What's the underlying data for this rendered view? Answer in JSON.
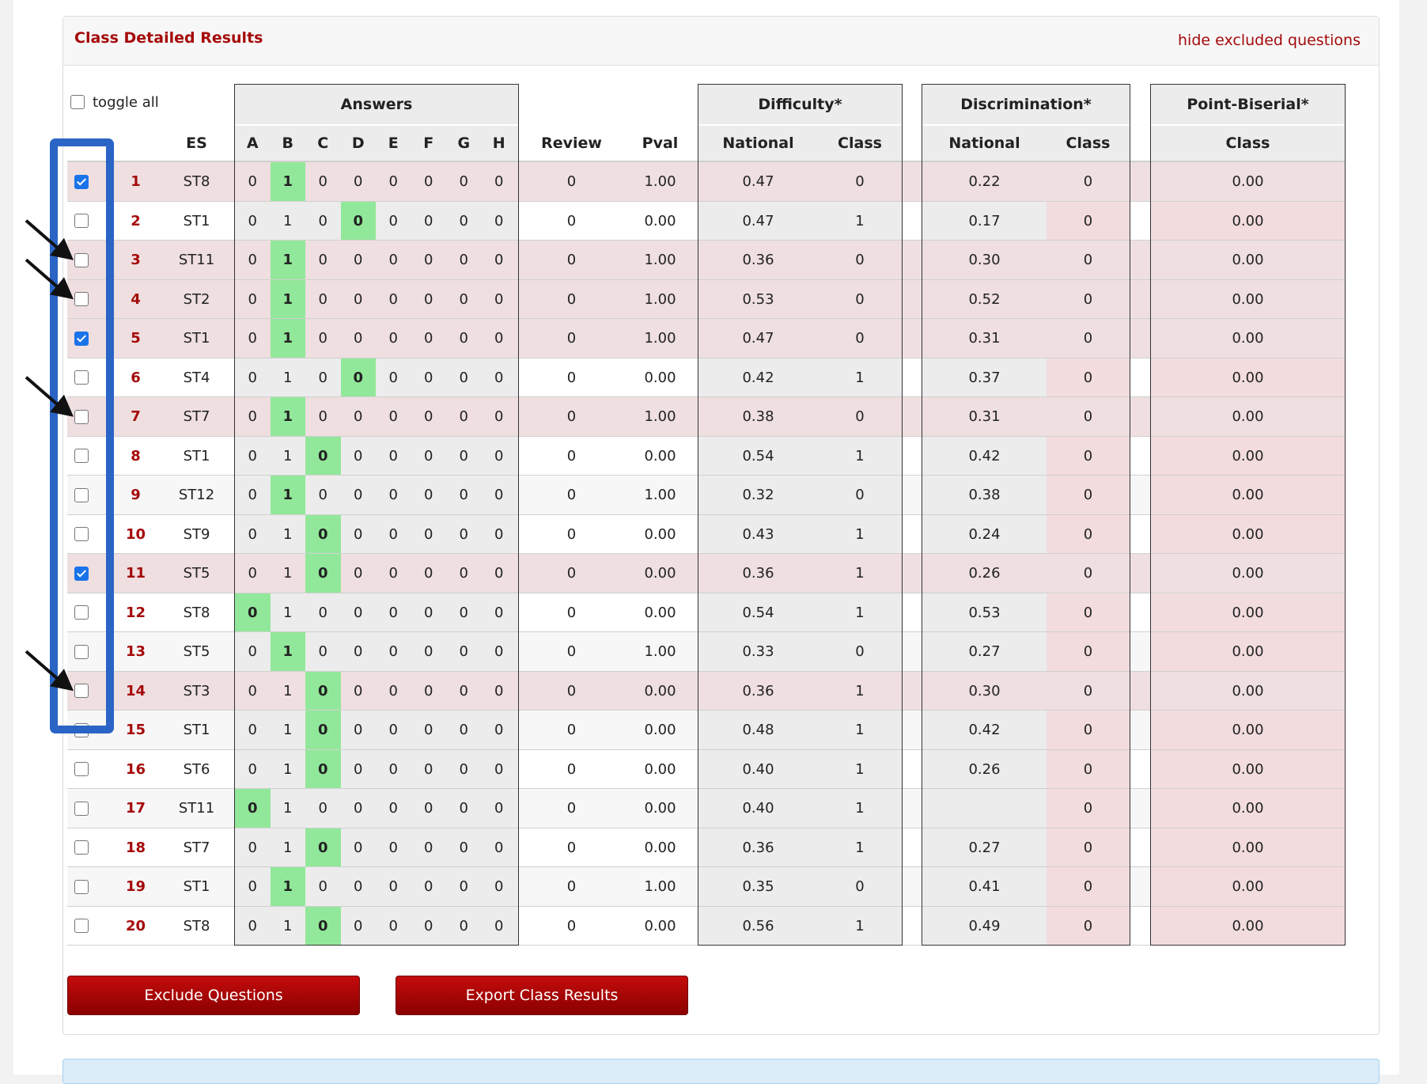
{
  "panel": {
    "title": "Class Detailed Results",
    "hide_link": "hide excluded questions",
    "toggle_all": "toggle all"
  },
  "headers": {
    "answers_group": "Answers",
    "difficulty_group": "Difficulty*",
    "discrimination_group": "Discrimination*",
    "pointbiserial_group": "Point-Biserial*",
    "es": "ES",
    "choices": [
      "A",
      "B",
      "C",
      "D",
      "E",
      "F",
      "G",
      "H"
    ],
    "review": "Review",
    "pval": "Pval",
    "diff_national": "National",
    "diff_class": "Class",
    "disc_national": "National",
    "disc_class": "Class",
    "pb_class": "Class"
  },
  "rows": [
    {
      "q": "1",
      "es": "ST8",
      "answers": [
        "0",
        "1",
        "0",
        "0",
        "0",
        "0",
        "0",
        "0"
      ],
      "correct": 1,
      "review": "0",
      "pval": "1.00",
      "diff_national": "0.47",
      "diff_class": "0",
      "disc_national": "0.22",
      "disc_class": "0",
      "pb_class": "0.00",
      "checked": true,
      "excluded": true
    },
    {
      "q": "2",
      "es": "ST1",
      "answers": [
        "0",
        "1",
        "0",
        "0",
        "0",
        "0",
        "0",
        "0"
      ],
      "correct": 3,
      "review": "0",
      "pval": "0.00",
      "diff_national": "0.47",
      "diff_class": "1",
      "disc_national": "0.17",
      "disc_class": "0",
      "pb_class": "0.00",
      "checked": false,
      "excluded": false
    },
    {
      "q": "3",
      "es": "ST11",
      "answers": [
        "0",
        "1",
        "0",
        "0",
        "0",
        "0",
        "0",
        "0"
      ],
      "correct": 1,
      "review": "0",
      "pval": "1.00",
      "diff_national": "0.36",
      "diff_class": "0",
      "disc_national": "0.30",
      "disc_class": "0",
      "pb_class": "0.00",
      "checked": false,
      "excluded": true
    },
    {
      "q": "4",
      "es": "ST2",
      "answers": [
        "0",
        "1",
        "0",
        "0",
        "0",
        "0",
        "0",
        "0"
      ],
      "correct": 1,
      "review": "0",
      "pval": "1.00",
      "diff_national": "0.53",
      "diff_class": "0",
      "disc_national": "0.52",
      "disc_class": "0",
      "pb_class": "0.00",
      "checked": false,
      "excluded": true
    },
    {
      "q": "5",
      "es": "ST1",
      "answers": [
        "0",
        "1",
        "0",
        "0",
        "0",
        "0",
        "0",
        "0"
      ],
      "correct": 1,
      "review": "0",
      "pval": "1.00",
      "diff_national": "0.47",
      "diff_class": "0",
      "disc_national": "0.31",
      "disc_class": "0",
      "pb_class": "0.00",
      "checked": true,
      "excluded": true
    },
    {
      "q": "6",
      "es": "ST4",
      "answers": [
        "0",
        "1",
        "0",
        "0",
        "0",
        "0",
        "0",
        "0"
      ],
      "correct": 3,
      "review": "0",
      "pval": "0.00",
      "diff_national": "0.42",
      "diff_class": "1",
      "disc_national": "0.37",
      "disc_class": "0",
      "pb_class": "0.00",
      "checked": false,
      "excluded": false
    },
    {
      "q": "7",
      "es": "ST7",
      "answers": [
        "0",
        "1",
        "0",
        "0",
        "0",
        "0",
        "0",
        "0"
      ],
      "correct": 1,
      "review": "0",
      "pval": "1.00",
      "diff_national": "0.38",
      "diff_class": "0",
      "disc_national": "0.31",
      "disc_class": "0",
      "pb_class": "0.00",
      "checked": false,
      "excluded": true
    },
    {
      "q": "8",
      "es": "ST1",
      "answers": [
        "0",
        "1",
        "0",
        "0",
        "0",
        "0",
        "0",
        "0"
      ],
      "correct": 2,
      "review": "0",
      "pval": "0.00",
      "diff_national": "0.54",
      "diff_class": "1",
      "disc_national": "0.42",
      "disc_class": "0",
      "pb_class": "0.00",
      "checked": false,
      "excluded": false
    },
    {
      "q": "9",
      "es": "ST12",
      "answers": [
        "0",
        "1",
        "0",
        "0",
        "0",
        "0",
        "0",
        "0"
      ],
      "correct": 1,
      "review": "0",
      "pval": "1.00",
      "diff_national": "0.32",
      "diff_class": "0",
      "disc_national": "0.38",
      "disc_class": "0",
      "pb_class": "0.00",
      "checked": false,
      "excluded": false
    },
    {
      "q": "10",
      "es": "ST9",
      "answers": [
        "0",
        "1",
        "0",
        "0",
        "0",
        "0",
        "0",
        "0"
      ],
      "correct": 2,
      "review": "0",
      "pval": "0.00",
      "diff_national": "0.43",
      "diff_class": "1",
      "disc_national": "0.24",
      "disc_class": "0",
      "pb_class": "0.00",
      "checked": false,
      "excluded": false
    },
    {
      "q": "11",
      "es": "ST5",
      "answers": [
        "0",
        "1",
        "0",
        "0",
        "0",
        "0",
        "0",
        "0"
      ],
      "correct": 2,
      "review": "0",
      "pval": "0.00",
      "diff_national": "0.36",
      "diff_class": "1",
      "disc_national": "0.26",
      "disc_class": "0",
      "pb_class": "0.00",
      "checked": true,
      "excluded": true
    },
    {
      "q": "12",
      "es": "ST8",
      "answers": [
        "0",
        "1",
        "0",
        "0",
        "0",
        "0",
        "0",
        "0"
      ],
      "correct": 0,
      "review": "0",
      "pval": "0.00",
      "diff_national": "0.54",
      "diff_class": "1",
      "disc_national": "0.53",
      "disc_class": "0",
      "pb_class": "0.00",
      "checked": false,
      "excluded": false
    },
    {
      "q": "13",
      "es": "ST5",
      "answers": [
        "0",
        "1",
        "0",
        "0",
        "0",
        "0",
        "0",
        "0"
      ],
      "correct": 1,
      "review": "0",
      "pval": "1.00",
      "diff_national": "0.33",
      "diff_class": "0",
      "disc_national": "0.27",
      "disc_class": "0",
      "pb_class": "0.00",
      "checked": false,
      "excluded": false
    },
    {
      "q": "14",
      "es": "ST3",
      "answers": [
        "0",
        "1",
        "0",
        "0",
        "0",
        "0",
        "0",
        "0"
      ],
      "correct": 2,
      "review": "0",
      "pval": "0.00",
      "diff_national": "0.36",
      "diff_class": "1",
      "disc_national": "0.30",
      "disc_class": "0",
      "pb_class": "0.00",
      "checked": false,
      "excluded": true
    },
    {
      "q": "15",
      "es": "ST1",
      "answers": [
        "0",
        "1",
        "0",
        "0",
        "0",
        "0",
        "0",
        "0"
      ],
      "correct": 2,
      "review": "0",
      "pval": "0.00",
      "diff_national": "0.48",
      "diff_class": "1",
      "disc_national": "0.42",
      "disc_class": "0",
      "pb_class": "0.00",
      "checked": false,
      "excluded": false
    },
    {
      "q": "16",
      "es": "ST6",
      "answers": [
        "0",
        "1",
        "0",
        "0",
        "0",
        "0",
        "0",
        "0"
      ],
      "correct": 2,
      "review": "0",
      "pval": "0.00",
      "diff_national": "0.40",
      "diff_class": "1",
      "disc_national": "0.26",
      "disc_class": "0",
      "pb_class": "0.00",
      "checked": false,
      "excluded": false
    },
    {
      "q": "17",
      "es": "ST11",
      "answers": [
        "0",
        "1",
        "0",
        "0",
        "0",
        "0",
        "0",
        "0"
      ],
      "correct": 0,
      "review": "0",
      "pval": "0.00",
      "diff_national": "0.40",
      "diff_class": "1",
      "disc_national": "",
      "disc_class": "0",
      "pb_class": "0.00",
      "checked": false,
      "excluded": false
    },
    {
      "q": "18",
      "es": "ST7",
      "answers": [
        "0",
        "1",
        "0",
        "0",
        "0",
        "0",
        "0",
        "0"
      ],
      "correct": 2,
      "review": "0",
      "pval": "0.00",
      "diff_national": "0.36",
      "diff_class": "1",
      "disc_national": "0.27",
      "disc_class": "0",
      "pb_class": "0.00",
      "checked": false,
      "excluded": false
    },
    {
      "q": "19",
      "es": "ST1",
      "answers": [
        "0",
        "1",
        "0",
        "0",
        "0",
        "0",
        "0",
        "0"
      ],
      "correct": 1,
      "review": "0",
      "pval": "1.00",
      "diff_national": "0.35",
      "diff_class": "0",
      "disc_national": "0.41",
      "disc_class": "0",
      "pb_class": "0.00",
      "checked": false,
      "excluded": false
    },
    {
      "q": "20",
      "es": "ST8",
      "answers": [
        "0",
        "1",
        "0",
        "0",
        "0",
        "0",
        "0",
        "0"
      ],
      "correct": 2,
      "review": "0",
      "pval": "0.00",
      "diff_national": "0.56",
      "diff_class": "1",
      "disc_national": "0.49",
      "disc_class": "0",
      "pb_class": "0.00",
      "checked": false,
      "excluded": false
    }
  ],
  "buttons": {
    "exclude": "Exclude Questions",
    "export": "Export Class Results"
  },
  "colors": {
    "brand_red": "#a50a0a",
    "correct_green": "#92e89a",
    "excluded_row": "#efdfe0",
    "shaded_column": "#ececec",
    "class_pink": "#f2dcdd",
    "highlight_blue": "#2a64c5"
  },
  "annotations": {
    "highlight": "checkbox-column-highlight",
    "arrow_rows": [
      "3",
      "4",
      "7",
      "14"
    ]
  }
}
